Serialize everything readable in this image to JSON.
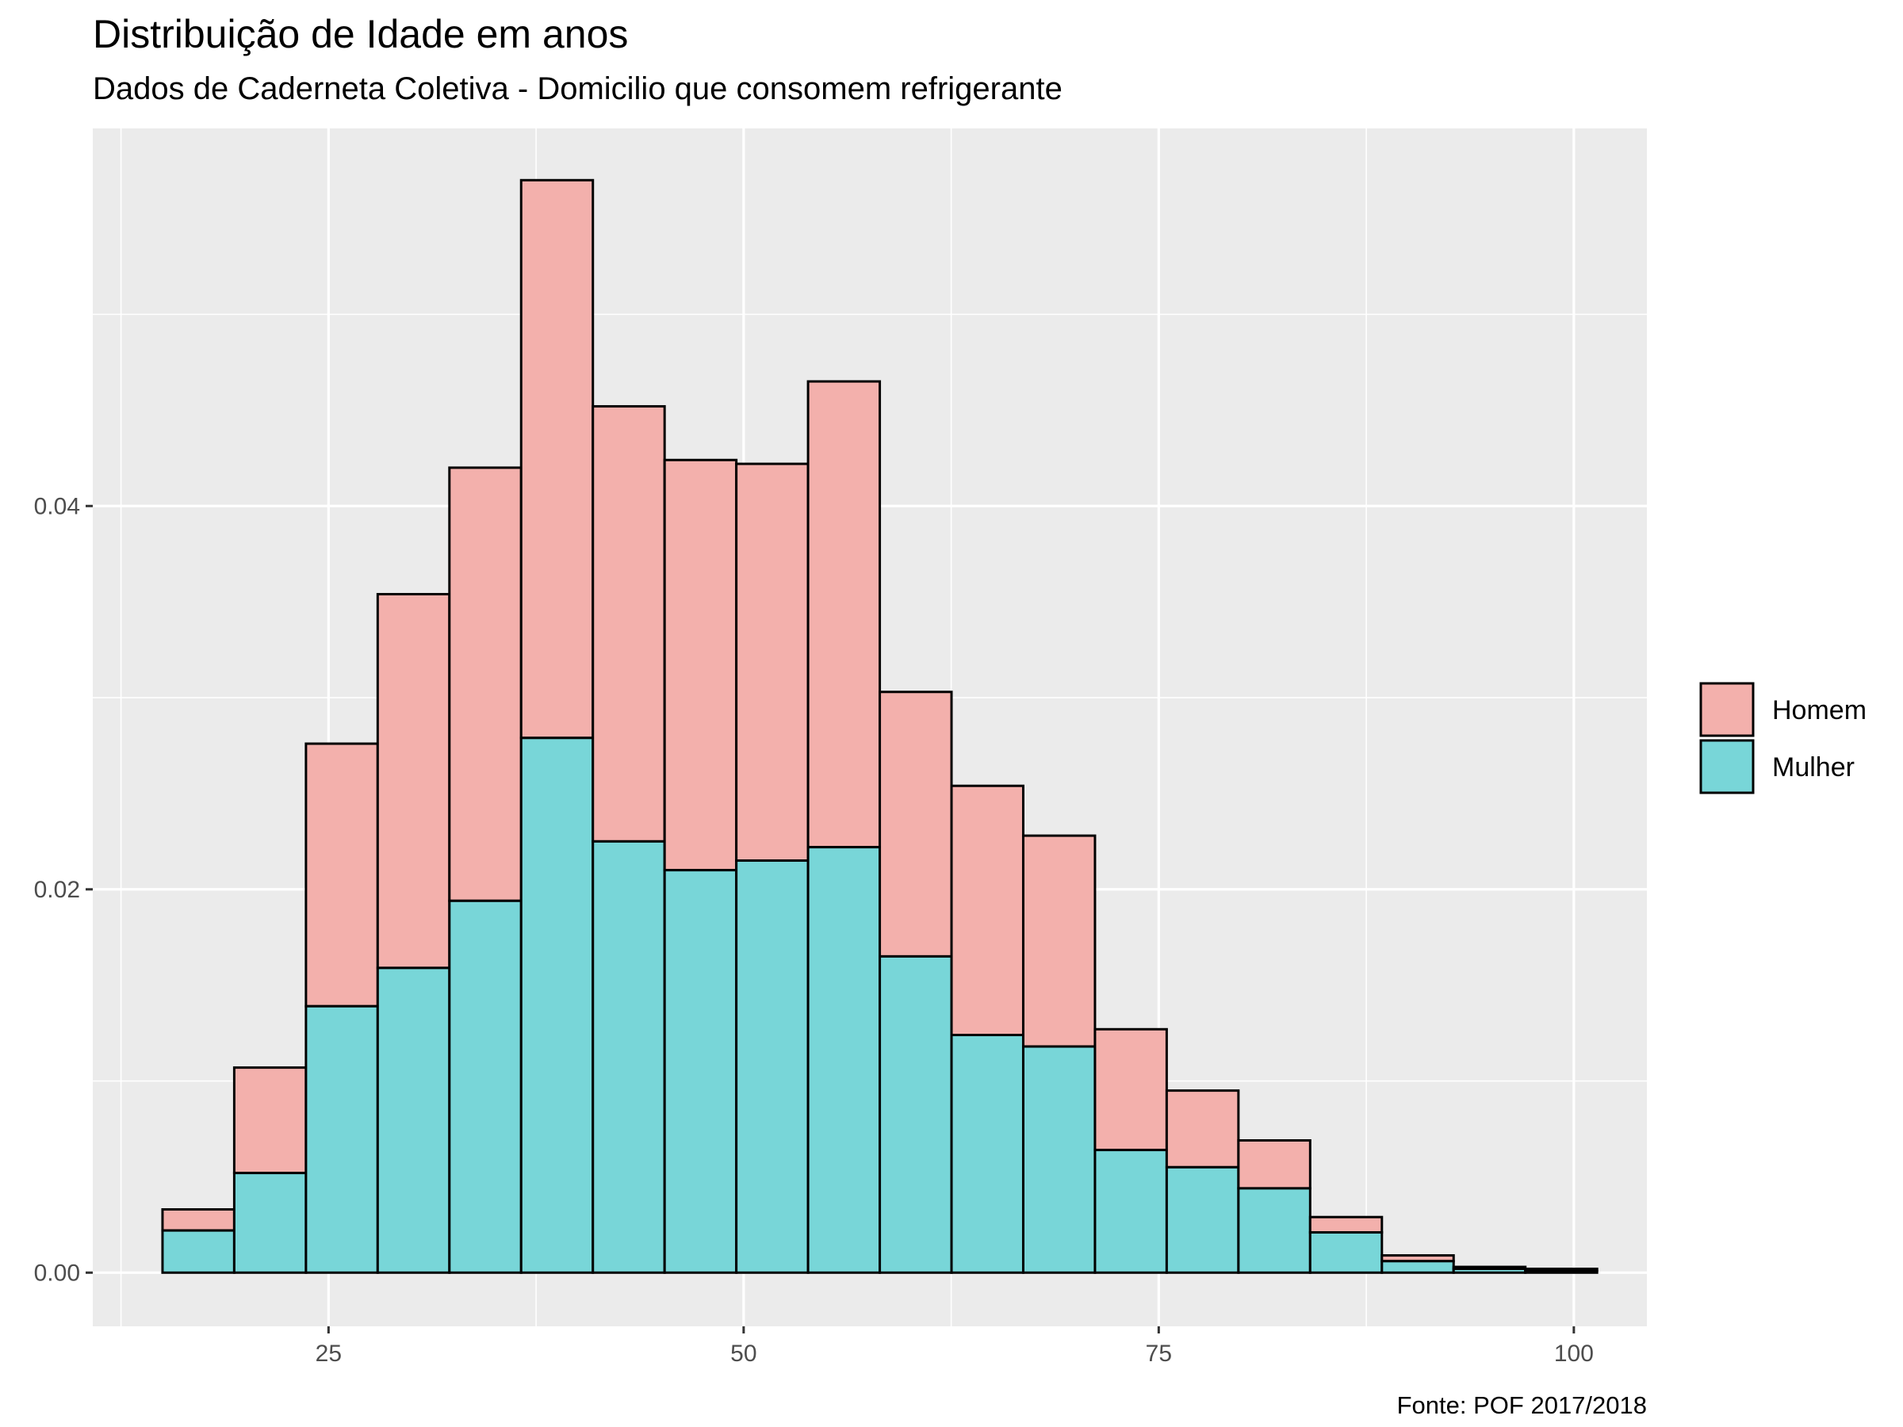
{
  "chart_data": {
    "type": "bar",
    "subtype": "stacked-histogram",
    "title": "Distribuição de Idade em anos",
    "subtitle": "Dados de Caderneta Coletiva - Domicilio que consomem refrigerante",
    "caption": "Fonte: POF 2017/2018",
    "xlabel": "",
    "ylabel": "",
    "xlim": [
      10.8,
      104.4
    ],
    "ylim": [
      -0.0028,
      0.0597
    ],
    "x_ticks": [
      25,
      50,
      75,
      100
    ],
    "x_tick_labels": [
      "25",
      "50",
      "75",
      "100"
    ],
    "y_ticks": [
      0.0,
      0.02,
      0.04
    ],
    "y_tick_labels": [
      "0.00",
      "0.02",
      "0.04"
    ],
    "grid": true,
    "legend_position": "right",
    "bin_edges": [
      15.0,
      19.32,
      23.64,
      27.96,
      32.28,
      36.6,
      40.92,
      45.24,
      49.56,
      53.88,
      58.2,
      62.52,
      66.84,
      71.16,
      75.48,
      79.8,
      84.12,
      88.44,
      92.76,
      97.08,
      101.4
    ],
    "series": [
      {
        "name": "Homem",
        "color": "#F8766D",
        "values": [
          0.0011,
          0.0055,
          0.0137,
          0.0195,
          0.0226,
          0.0291,
          0.0227,
          0.0214,
          0.0207,
          0.0243,
          0.0138,
          0.013,
          0.011,
          0.0063,
          0.004,
          0.0025,
          0.0008,
          0.0003,
          0.0001,
          0.0001
        ]
      },
      {
        "name": "Mulher",
        "color": "#00BFC4",
        "values": [
          0.0022,
          0.0052,
          0.0139,
          0.0159,
          0.0194,
          0.0279,
          0.0225,
          0.021,
          0.0215,
          0.0222,
          0.0165,
          0.0124,
          0.0118,
          0.0064,
          0.0055,
          0.0044,
          0.0021,
          0.0006,
          0.0002,
          0.0001
        ]
      }
    ]
  }
}
